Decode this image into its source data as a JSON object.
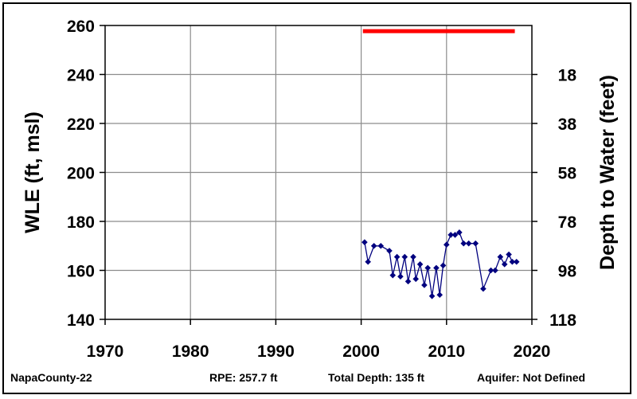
{
  "chart_data": {
    "type": "line",
    "left_axis_label": "WLE (ft, msl)",
    "right_axis_label": "Depth to Water (feet)",
    "xlim": [
      1970,
      2020
    ],
    "x_ticks": [
      "1970",
      "1980",
      "1990",
      "2000",
      "2010",
      "2020"
    ],
    "ylim": [
      140,
      260
    ],
    "y_ticks": [
      "140",
      "160",
      "180",
      "200",
      "220",
      "240",
      "260"
    ],
    "right_ticks": [
      "18",
      "38",
      "58",
      "78",
      "98",
      "118"
    ],
    "right_tick_wle": [
      240,
      220,
      200,
      180,
      160,
      140
    ],
    "grid": true,
    "reference_line": {
      "y": 257.7,
      "x": [
        2000.2,
        2018
      ],
      "color": "#ff0000"
    },
    "series": [
      {
        "color": "#00007f",
        "x": [
          2000.4,
          2000.8,
          2001.5,
          2002.3,
          2003.3,
          2003.7,
          2004.2,
          2004.6,
          2005.1,
          2005.5,
          2006.1,
          2006.4,
          2006.9,
          2007.4,
          2007.8,
          2008.3,
          2008.8,
          2009.2,
          2009.6,
          2010.0,
          2010.5,
          2011.0,
          2011.5,
          2012.0,
          2012.6,
          2013.4,
          2014.3,
          2015.2,
          2015.7,
          2016.3,
          2016.8,
          2017.3,
          2017.7,
          2018.2
        ],
        "y": [
          171.5,
          163.5,
          170,
          170,
          168,
          158,
          165.5,
          157.5,
          165.5,
          155.5,
          165.5,
          156.5,
          162.5,
          154,
          161,
          149.5,
          161,
          150,
          162,
          170.5,
          174.5,
          174.5,
          175.5,
          171,
          171,
          171,
          152.5,
          160,
          160,
          165.5,
          162.5,
          166.5,
          163.5,
          163.5
        ]
      }
    ]
  },
  "footer": {
    "well": "NapaCounty-22",
    "rpe": "RPE: 257.7 ft",
    "total_depth": "Total Depth: 135 ft",
    "aquifer": "Aquifer: Not Defined"
  }
}
